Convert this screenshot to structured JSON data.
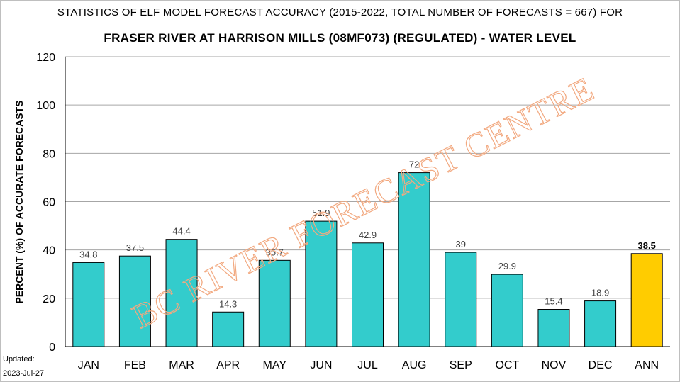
{
  "chart_data": {
    "type": "bar",
    "title": "STATISTICS OF ELF MODEL FORECAST ACCURACY (2015-2022, TOTAL NUMBER OF FORECASTS = 667) FOR",
    "subtitle": "FRASER RIVER AT HARRISON MILLS (08MF073) (REGULATED)  - WATER LEVEL",
    "ylabel": "PERCENT (%) OF ACCURATE FORECASTS",
    "xlabel": "",
    "ylim": [
      0,
      120
    ],
    "yticks": [
      0,
      20,
      40,
      60,
      80,
      100,
      120
    ],
    "grid": true,
    "categories": [
      "JAN",
      "FEB",
      "MAR",
      "APR",
      "MAY",
      "JUN",
      "JUL",
      "AUG",
      "SEP",
      "OCT",
      "NOV",
      "DEC",
      "ANN"
    ],
    "values": [
      34.8,
      37.5,
      44.4,
      14.3,
      35.7,
      51.9,
      42.9,
      72,
      39,
      29.9,
      15.4,
      18.9,
      38.5
    ],
    "data_labels": [
      "34.8",
      "37.5",
      "44.4",
      "14.3",
      "35.7",
      "51.9",
      "42.9",
      "72",
      "39",
      "29.9",
      "15.4",
      "18.9",
      "38.5"
    ],
    "colors": {
      "monthly": "#33cccc",
      "annual": "#ffcc00",
      "outline": "#000000",
      "grid": "#a6a6a6"
    },
    "watermark": "BC RIVER FORECAST CENTRE"
  },
  "footer": {
    "updated_label": "Updated:",
    "updated_date": "2023-Jul-27"
  }
}
